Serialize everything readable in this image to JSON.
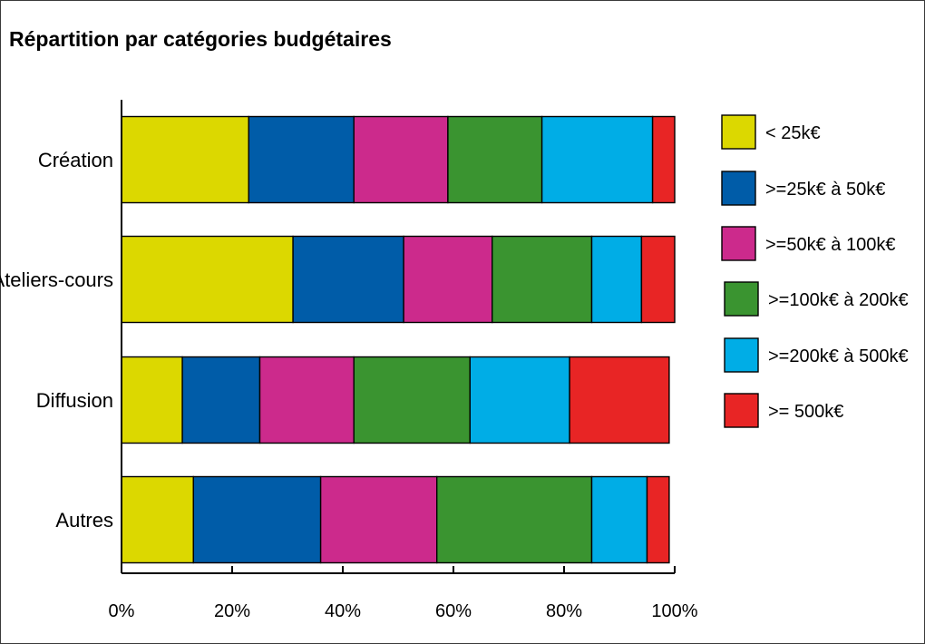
{
  "chart_data": {
    "type": "bar",
    "orientation": "horizontal",
    "stacked": true,
    "title": "Répartition par catégories budgétaires",
    "categories": [
      "Création",
      "Ateliers-cours",
      "Diffusion",
      "Autres"
    ],
    "series": [
      {
        "name": "< 25k€",
        "color": "#dcd800",
        "values": [
          23,
          31,
          11,
          13
        ]
      },
      {
        "name": ">=25k€ à 50k€",
        "color": "#005ca8",
        "values": [
          19,
          20,
          14,
          23
        ]
      },
      {
        "name": ">=50k€ à 100k€",
        "color": "#cc2a8c",
        "values": [
          17,
          16,
          17,
          21
        ]
      },
      {
        "name": ">=100k€ à 200k€",
        "color": "#3a9430",
        "values": [
          17,
          18,
          21,
          28
        ]
      },
      {
        "name": ">=200k€ à 500k€",
        "color": "#00ade6",
        "values": [
          20,
          9,
          18,
          10
        ]
      },
      {
        "name": ">= 500k€",
        "color": "#e82525",
        "values": [
          4,
          6,
          18,
          4
        ]
      }
    ],
    "xlim": [
      0,
      100
    ],
    "xticks": [
      0,
      20,
      40,
      60,
      80,
      100
    ],
    "xtick_labels": [
      "0%",
      "20%",
      "40%",
      "60%",
      "80%",
      "100%"
    ],
    "xlabel": "",
    "ylabel": "",
    "grid": false,
    "legend_position": "right"
  }
}
